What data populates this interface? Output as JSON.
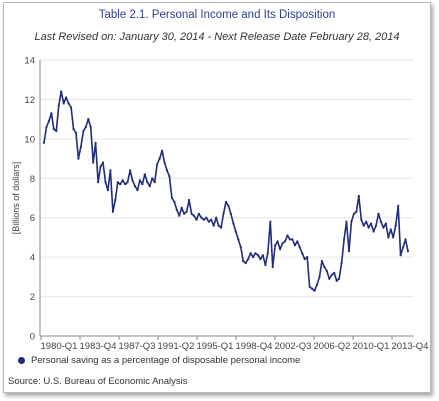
{
  "colors": {
    "series": "#1f2d7a",
    "title": "#2b3f8f",
    "grid": "#e6e6e6",
    "axis": "#8a8a8a"
  },
  "chart_data": {
    "type": "line",
    "title": "Table 2.1. Personal Income and Its Disposition",
    "subtitle": "Last Revised on: January 30, 2014 - Next Release Date February 28, 2014",
    "ylabel": "[Billions of dollars]",
    "xlabel": "",
    "ylim": [
      0,
      14
    ],
    "yticks": [
      0,
      2,
      4,
      6,
      8,
      10,
      12,
      14
    ],
    "xtick_labels": [
      "1980-Q1",
      "1983-Q4",
      "1987-Q3",
      "1991-Q2",
      "1995-Q1",
      "1998-Q4",
      "2002-Q3",
      "2006-Q2",
      "2010-Q1",
      "2013-Q4"
    ],
    "grid": "horizontal",
    "legend_position": "bottom",
    "series": [
      {
        "name": "Personal saving as a percentage of disposable personal income",
        "marker": "circle",
        "values": [
          9.8,
          10.6,
          10.9,
          11.3,
          10.5,
          10.4,
          11.7,
          12.4,
          11.8,
          12.1,
          11.8,
          11.6,
          10.5,
          10.3,
          9.0,
          9.6,
          10.4,
          10.6,
          11.0,
          10.6,
          8.8,
          9.8,
          7.8,
          8.6,
          8.8,
          7.8,
          7.4,
          8.4,
          6.3,
          6.9,
          7.8,
          7.7,
          7.9,
          7.7,
          7.8,
          8.4,
          7.9,
          7.6,
          7.4,
          7.9,
          7.7,
          8.2,
          7.8,
          7.6,
          8.0,
          7.8,
          8.7,
          9.0,
          9.4,
          8.8,
          8.4,
          8.1,
          7.0,
          6.8,
          6.4,
          6.1,
          6.5,
          6.2,
          6.3,
          6.9,
          6.2,
          6.1,
          5.9,
          6.2,
          6.0,
          5.9,
          6.0,
          5.8,
          5.9,
          5.6,
          6.0,
          5.6,
          5.5,
          6.2,
          6.8,
          6.6,
          6.2,
          5.7,
          5.3,
          4.9,
          4.5,
          3.8,
          3.7,
          3.9,
          4.2,
          4.0,
          4.2,
          4.1,
          3.9,
          4.1,
          3.6,
          4.2,
          5.8,
          3.5,
          4.6,
          4.8,
          4.4,
          4.7,
          4.8,
          5.1,
          4.9,
          4.9,
          4.6,
          4.8,
          4.5,
          4.2,
          3.9,
          4.0,
          2.5,
          2.4,
          2.3,
          2.6,
          3.0,
          3.8,
          3.5,
          3.3,
          2.9,
          3.1,
          3.2,
          2.8,
          2.9,
          3.7,
          4.9,
          5.8,
          4.3,
          5.8,
          6.2,
          6.3,
          7.1,
          5.9,
          5.6,
          5.8,
          5.5,
          5.7,
          5.3,
          5.6,
          6.2,
          5.8,
          5.5,
          5.7,
          5.0,
          5.4,
          5.0,
          5.6,
          6.6,
          4.1,
          4.5,
          4.9,
          4.3
        ]
      }
    ]
  },
  "source": "Source: U.S. Bureau of Economic Analysis"
}
